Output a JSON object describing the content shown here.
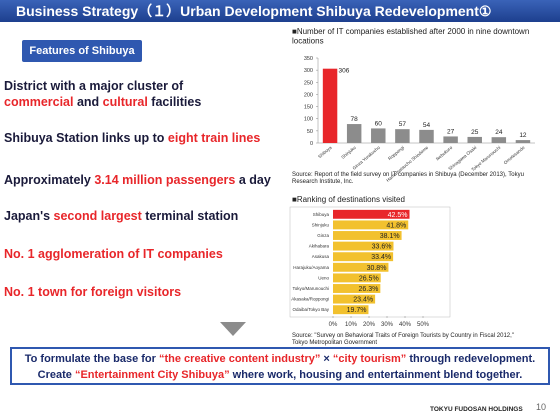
{
  "header": {
    "title": "Business Strategy（１）Urban Development  Shibuya Redevelopment①"
  },
  "features": {
    "title": "Features of Shibuya",
    "items": [
      {
        "segments": [
          {
            "text": "District with a major cluster of ",
            "color": "#1a1a3a"
          },
          {
            "text": "commercial",
            "color": "#e8262a"
          },
          {
            "text": " and ",
            "color": "#1a1a3a"
          },
          {
            "text": "cultural",
            "color": "#e8262a"
          },
          {
            "text": " facilities",
            "color": "#1a1a3a"
          }
        ]
      },
      {
        "segments": [
          {
            "text": "Shibuya Station links up to ",
            "color": "#1a1a3a"
          },
          {
            "text": "eight train lines",
            "color": "#e8262a"
          }
        ]
      },
      {
        "segments": [
          {
            "text": "Approximately ",
            "color": "#1a1a3a"
          },
          {
            "text": "3.14 million passengers",
            "color": "#e8262a"
          },
          {
            "text": " a day",
            "color": "#1a1a3a"
          }
        ]
      },
      {
        "segments": [
          {
            "text": "Japan's ",
            "color": "#1a1a3a"
          },
          {
            "text": "second largest",
            "color": "#e8262a"
          },
          {
            "text": " terminal station",
            "color": "#1a1a3a"
          }
        ]
      },
      {
        "segments": [
          {
            "text": "No. 1 agglomeration of IT companies",
            "color": "#e8262a"
          }
        ]
      },
      {
        "segments": [
          {
            "text": "No. 1 town for foreign visitors",
            "color": "#e8262a"
          }
        ]
      }
    ]
  },
  "chart_data": [
    {
      "type": "bar",
      "title": "■Number of IT companies established after 2000 in nine downtown locations",
      "categories": [
        "Shibuya",
        "Shinjuku",
        "Ginza Yurakucho",
        "Roppongi",
        "Hamamatsucho Shiodome",
        "Ikebukuro",
        "Shinagawa Osaki",
        "Tokyo Marunouchi",
        "Omotesando"
      ],
      "values": [
        306,
        78,
        60,
        57,
        54,
        27,
        25,
        24,
        12
      ],
      "colors": [
        "#e8262a",
        "#8c8c8c",
        "#8c8c8c",
        "#8c8c8c",
        "#8c8c8c",
        "#8c8c8c",
        "#8c8c8c",
        "#8c8c8c",
        "#8c8c8c"
      ],
      "ylim": [
        0,
        350
      ],
      "yticks": [
        0,
        50,
        100,
        150,
        200,
        250,
        300,
        350
      ],
      "source": "Source: Report of the field survey on IT companies in Shibuya (December 2013), Tokyu Research Institute, Inc."
    },
    {
      "type": "hbar",
      "title": "■Ranking of destinations visited",
      "categories": [
        "Shibuya",
        "Shinjuku",
        "Ginza",
        "Akihabara",
        "Asakusa",
        "Harajuku/Aoyama",
        "Ueno",
        "Tokyo/Marunouchi",
        "Akasaka/Roppongi",
        "Odaiba/Tokyo Bay"
      ],
      "values": [
        42.5,
        41.8,
        38.1,
        33.6,
        33.4,
        30.8,
        26.5,
        26.3,
        23.4,
        19.7
      ],
      "value_labels": [
        "42.5%",
        "41.8%",
        "38.1%",
        "33.6%",
        "33.4%",
        "30.8%",
        "26.5%",
        "26.3%",
        "23.4%",
        "19.7%"
      ],
      "colors": [
        "#e8262a",
        "#f2c12e",
        "#f2c12e",
        "#f2c12e",
        "#f2c12e",
        "#f2c12e",
        "#f2c12e",
        "#f2c12e",
        "#f2c12e",
        "#f2c12e"
      ],
      "xlim": [
        0,
        50
      ],
      "xticks": [
        {
          "value": 0,
          "label": "0%"
        },
        {
          "value": 10,
          "label": "10%"
        },
        {
          "value": 20,
          "label": "20%"
        },
        {
          "value": 30,
          "label": "30%"
        },
        {
          "value": 40,
          "label": "40%"
        },
        {
          "value": 50,
          "label": "50%"
        }
      ],
      "source": "Source: \"Survey on Behavioral Traits of Foreign Tourists by Country in Fiscal 2012,\" Tokyo Metropolitan Government"
    }
  ],
  "conclusion": {
    "lines": [
      {
        "segments": [
          {
            "text": "To formulate the base for ",
            "color": "#1a2a6a"
          },
          {
            "text": "“the creative content industry”",
            "color": "#e8262a"
          },
          {
            "text": " × ",
            "color": "#1a2a6a"
          },
          {
            "text": "“city tourism”",
            "color": "#e8262a"
          },
          {
            "text": " through redevelopment.",
            "color": "#1a2a6a"
          }
        ]
      },
      {
        "segments": [
          {
            "text": "Create ",
            "color": "#1a2a6a"
          },
          {
            "text": "“Entertainment City Shibuya”",
            "color": "#e8262a"
          },
          {
            "text": " where work, housing and entertainment blend together.",
            "color": "#1a2a6a"
          }
        ]
      }
    ]
  },
  "footer": {
    "page": "10",
    "company": "TOKYU FUDOSAN HOLDINGS"
  }
}
